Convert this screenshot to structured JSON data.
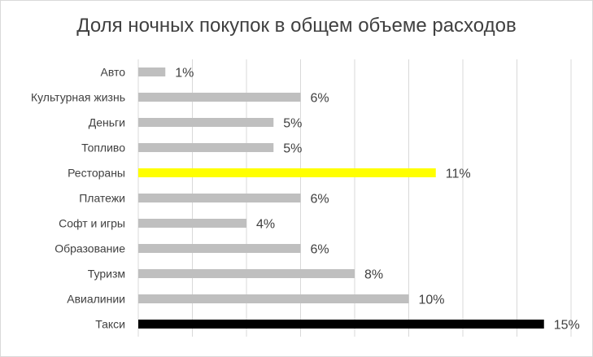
{
  "chart_data": {
    "type": "bar",
    "orientation": "horizontal",
    "title": "Доля ночных покупок в общем объеме расходов",
    "categories": [
      "Авто",
      "Культурная жизнь",
      "Деньги",
      "Топливо",
      "Рестораны",
      "Платежи",
      "Софт и игры",
      "Образование",
      "Туризм",
      "Авиалинии",
      "Такси"
    ],
    "values": [
      1,
      6,
      5,
      5,
      11,
      6,
      4,
      6,
      8,
      10,
      15
    ],
    "labels": [
      "1%",
      "6%",
      "5%",
      "5%",
      "11%",
      "6%",
      "4%",
      "6%",
      "8%",
      "10%",
      "15%"
    ],
    "bar_colors": [
      "#bfbfbf",
      "#bfbfbf",
      "#bfbfbf",
      "#bfbfbf",
      "#ffff00",
      "#bfbfbf",
      "#bfbfbf",
      "#bfbfbf",
      "#bfbfbf",
      "#bfbfbf",
      "#000000"
    ],
    "grid": true,
    "xlim": [
      0,
      16
    ]
  }
}
